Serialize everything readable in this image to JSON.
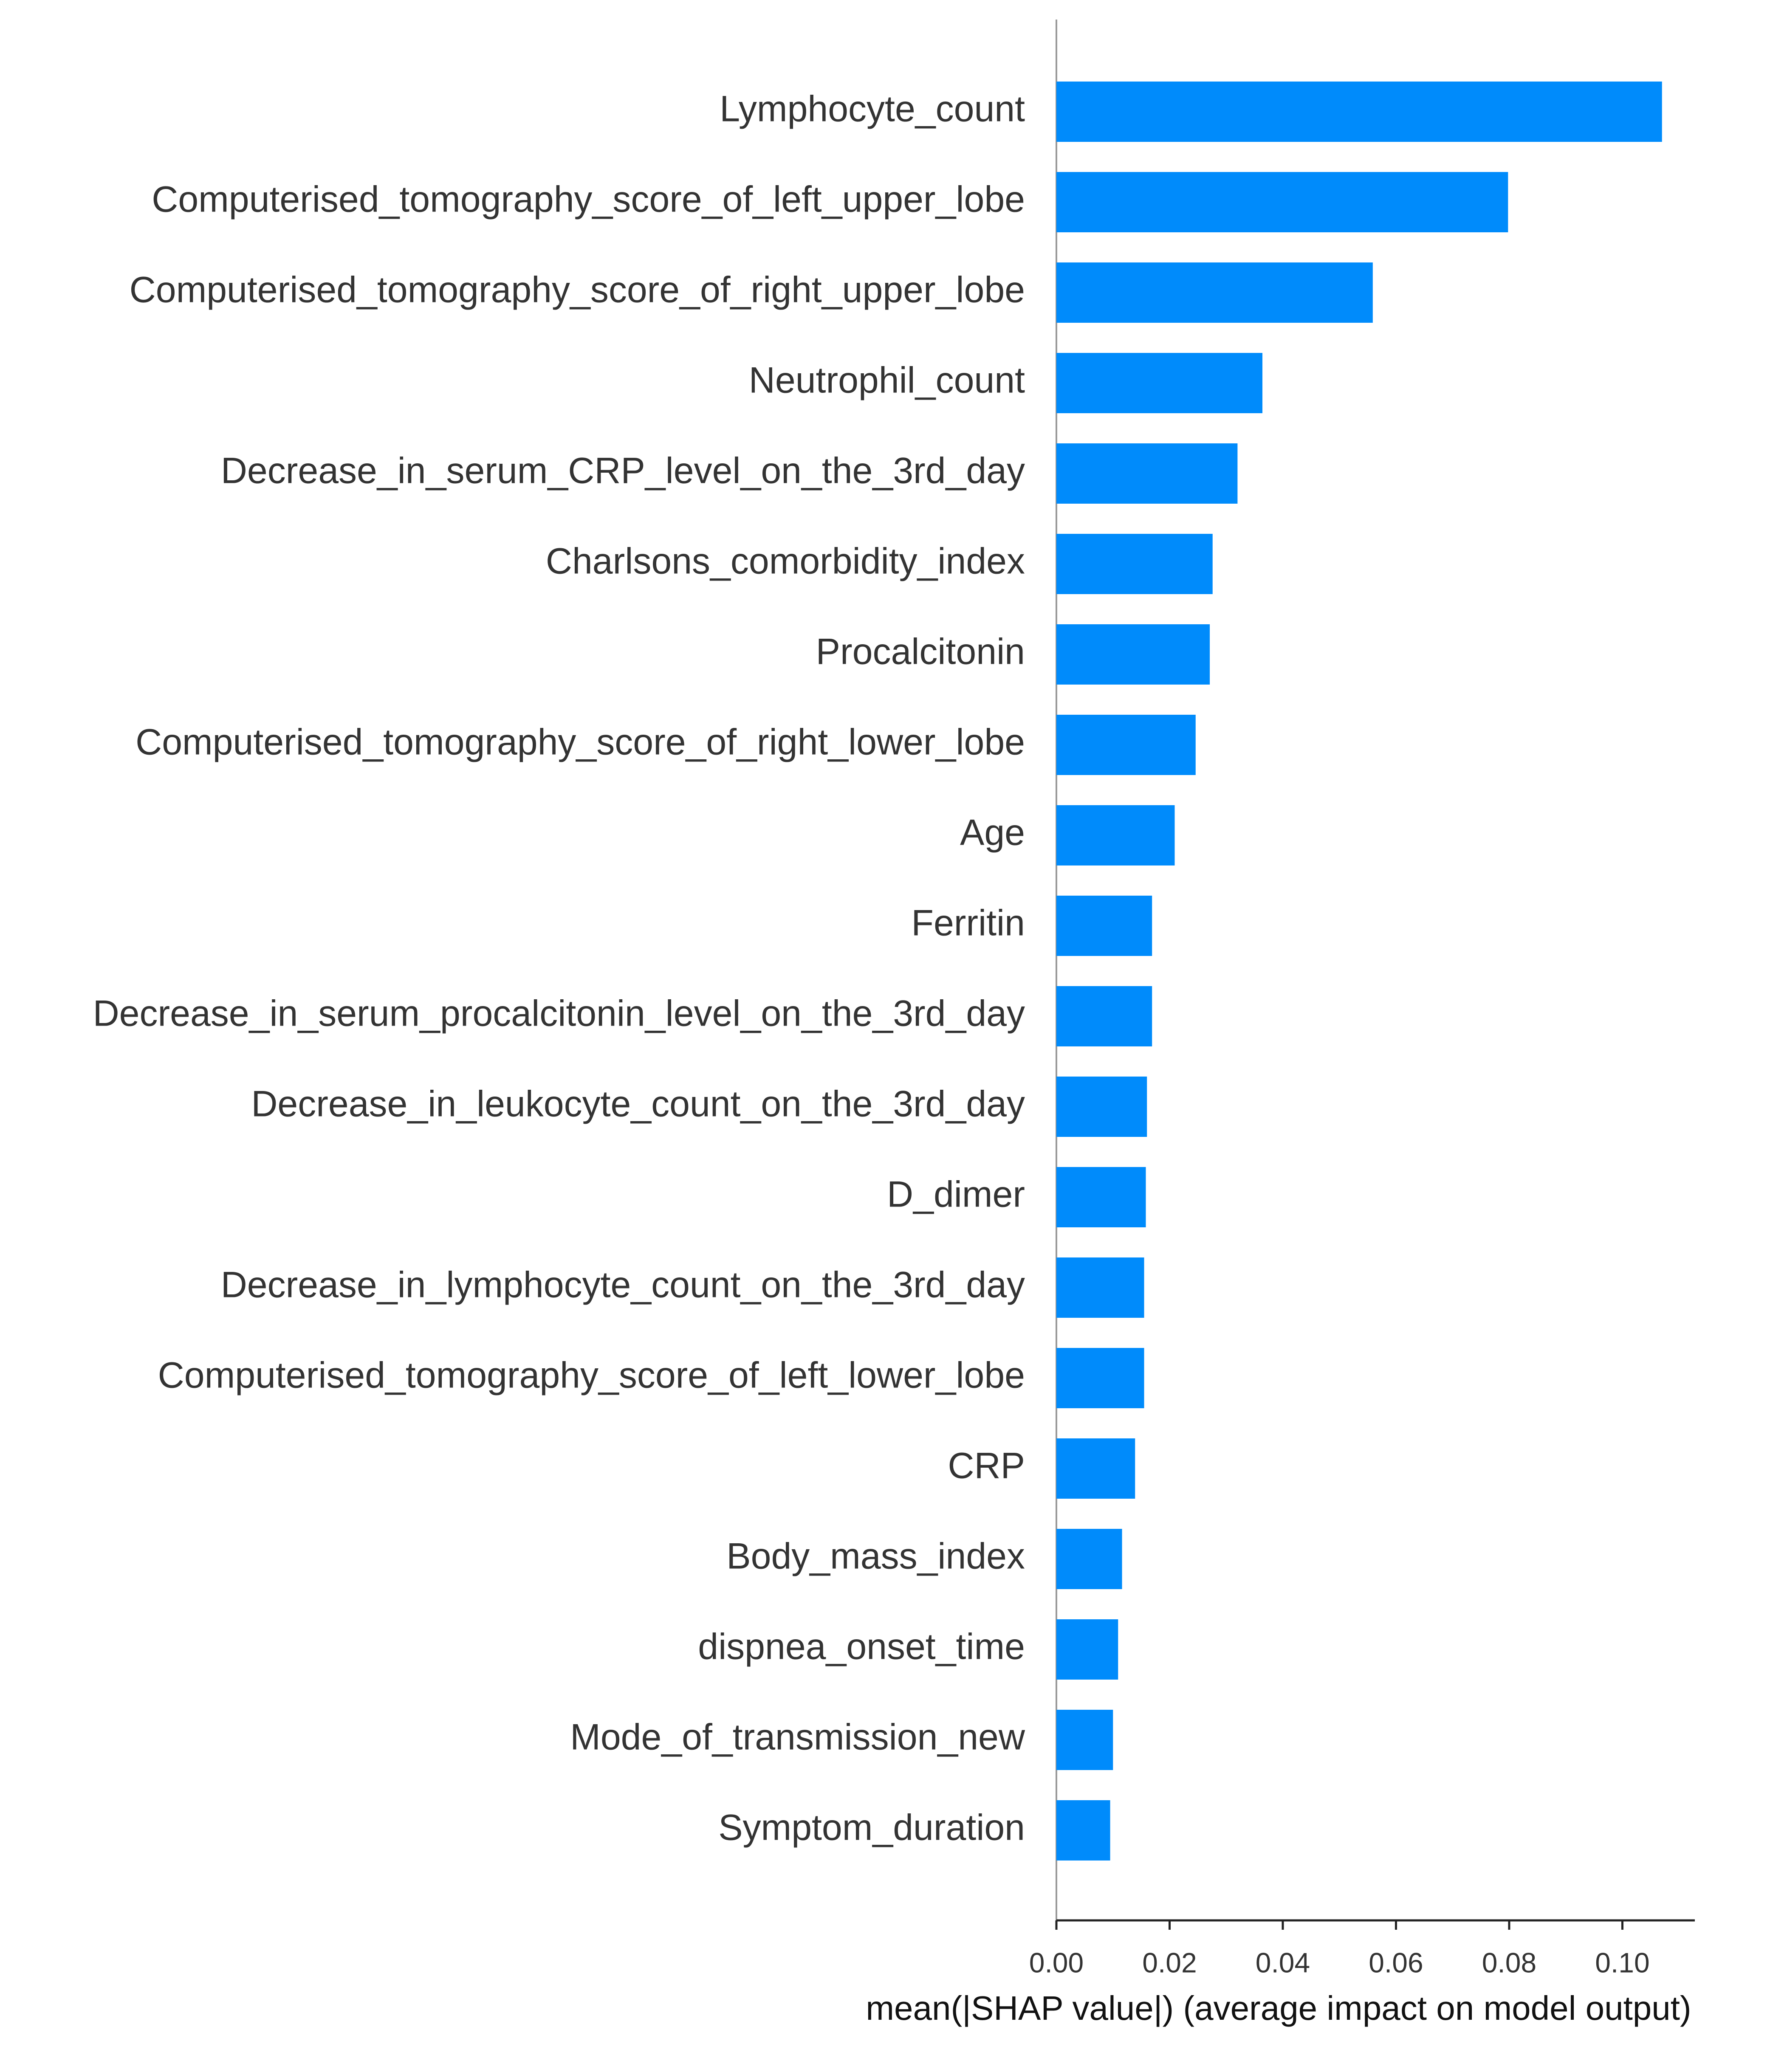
{
  "chart_data": {
    "type": "bar",
    "orientation": "horizontal",
    "x_label": "mean(|SHAP value|) (average impact on model output)",
    "categories": [
      "Lymphocyte_count",
      "Computerised_tomography_score_of_left_upper_lobe",
      "Computerised_tomography_score_of_right_upper_lobe",
      "Neutrophil_count",
      "Decrease_in_serum_CRP_level_on_the_3rd_day",
      "Charlsons_comorbidity_index",
      "Procalcitonin",
      "Computerised_tomography_score_of_right_lower_lobe",
      "Age",
      "Ferritin",
      "Decrease_in_serum_procalcitonin_level_on_the_3rd_day",
      "Decrease_in_leukocyte_count_on_the_3rd_day",
      "D_dimer",
      "Decrease_in_lymphocyte_count_on_the_3rd_day",
      "Computerised_tomography_score_of_left_lower_lobe",
      "CRP",
      "Body_mass_index",
      "dispnea_onset_time",
      "Mode_of_transmission_new",
      "Symptom_duration"
    ],
    "values": [
      0.107,
      0.0798,
      0.0559,
      0.0364,
      0.032,
      0.0276,
      0.0271,
      0.0246,
      0.0209,
      0.0169,
      0.0169,
      0.016,
      0.0158,
      0.0155,
      0.0155,
      0.0139,
      0.0116,
      0.0109,
      0.01,
      0.0095
    ],
    "color": "#008bfb",
    "xlim": [
      0,
      0.1128
    ],
    "xticks": [
      {
        "value": 0,
        "label": "0.00"
      },
      {
        "value": 0.02,
        "label": "0.02"
      },
      {
        "value": 0.04,
        "label": "0.04"
      },
      {
        "value": 0.06,
        "label": "0.06"
      },
      {
        "value": 0.08,
        "label": "0.08"
      },
      {
        "value": 0.1,
        "label": "0.10"
      }
    ]
  }
}
